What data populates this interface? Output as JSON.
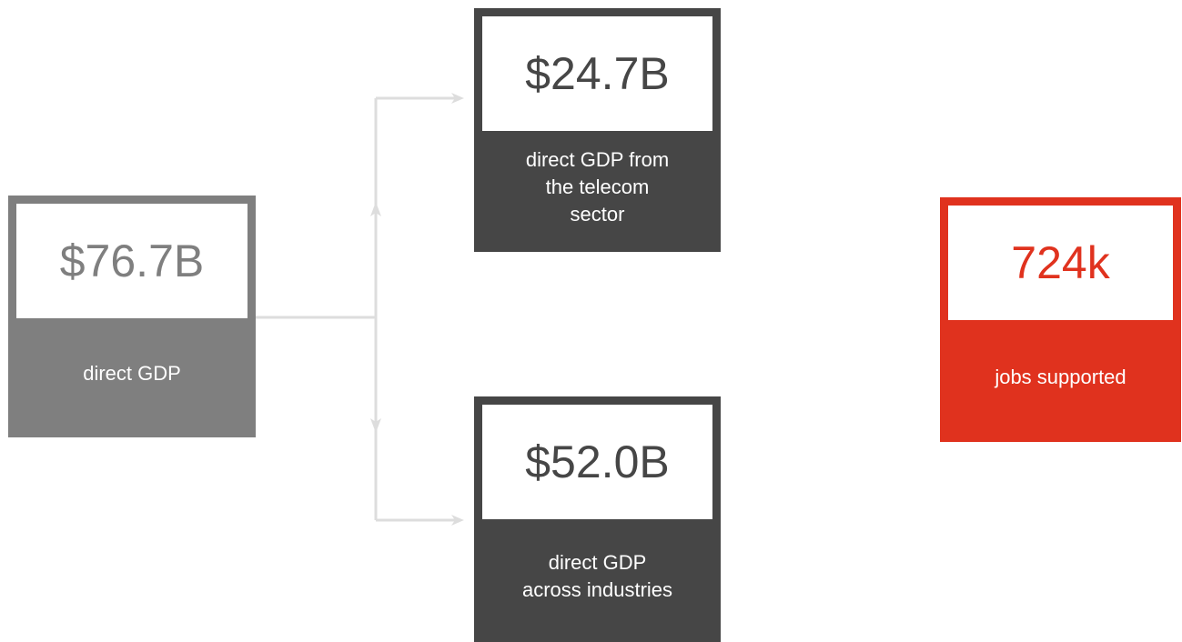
{
  "nodes": [
    {
      "value": "$76.7B",
      "label": [
        "direct GDP"
      ]
    },
    {
      "value": "$24.7B",
      "label": [
        "direct GDP from",
        "the telecom",
        "sector"
      ]
    },
    {
      "value": "$52.0B",
      "label": [
        "direct GDP",
        "across industries"
      ]
    },
    {
      "value": "724k",
      "label": [
        "jobs supported"
      ]
    }
  ]
}
